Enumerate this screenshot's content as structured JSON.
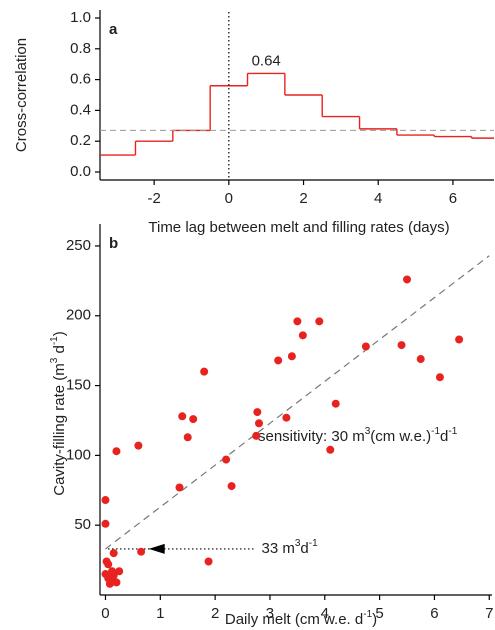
{
  "chart_data": [
    {
      "type": "step",
      "panel_label": "a",
      "ylabel": "Cross-correlation",
      "xlabel": "Time lag  between melt and filling rates (days)",
      "x": [
        -3,
        -2,
        -1,
        0,
        1,
        2,
        3,
        4,
        5,
        6,
        7
      ],
      "values": [
        0.11,
        0.2,
        0.27,
        0.56,
        0.64,
        0.5,
        0.36,
        0.28,
        0.24,
        0.23,
        0.22
      ],
      "value_labels": [
        null,
        null,
        null,
        null,
        "0.64",
        null,
        null,
        null,
        null,
        null,
        null
      ],
      "color": "#e8231f",
      "xlim": [
        -3.45,
        7.1
      ],
      "ylim": [
        0,
        1
      ],
      "xticks": [
        -2,
        0,
        2,
        4,
        6
      ],
      "yticks": [
        {
          "value": 0,
          "label": "0.0"
        },
        0.2,
        0.4,
        0.6,
        0.8,
        {
          "value": 1,
          "label": "1.0"
        }
      ],
      "reference_line": 0.27,
      "vline": 0
    },
    {
      "type": "scatter",
      "panel_label": "b",
      "ylabel": [
        "Cavity-filling rate (m",
        "3",
        " d",
        "-1",
        ")"
      ],
      "xlabel": [
        "Daily melt (cm w.e. d",
        "-1",
        ")"
      ],
      "x": [
        0.0,
        0.0,
        0.02,
        0.05,
        0.0,
        0.05,
        0.1,
        0.12,
        0.15,
        0.08,
        0.2,
        0.25,
        0.15,
        0.2,
        0.6,
        0.65,
        1.35,
        1.4,
        1.5,
        1.6,
        1.8,
        1.88,
        2.2,
        2.3,
        2.75,
        2.77,
        2.8,
        3.15,
        3.3,
        3.4,
        3.5,
        3.6,
        3.9,
        4.1,
        4.2,
        4.75,
        5.4,
        5.5,
        5.75,
        6.1,
        6.45
      ],
      "values": [
        68,
        51,
        24,
        22,
        15,
        12,
        10,
        17,
        14,
        8,
        9,
        17,
        30,
        103,
        107,
        31,
        77,
        128,
        113,
        126,
        160,
        24,
        97,
        78,
        114,
        131,
        123,
        168,
        127,
        171,
        196,
        186,
        196,
        104,
        137,
        178,
        179,
        226,
        169,
        156,
        183
      ],
      "color": "#e8231f",
      "xlim": [
        -0.1,
        7.05
      ],
      "ylim": [
        0,
        260
      ],
      "xticks": [
        0,
        1,
        2,
        3,
        4,
        5,
        6,
        7
      ],
      "yticks": [
        50,
        100,
        150,
        200,
        250
      ],
      "fit_line": {
        "x": [
          0,
          7
        ],
        "y": [
          33,
          243
        ]
      },
      "arrow": {
        "x": [
          2.7,
          0
        ],
        "y": 33
      },
      "arrow_label": [
        "33 m",
        "3",
        "d",
        "-1"
      ],
      "sensitivity_label": [
        "sensitivity: 30 m",
        "3",
        "(cm w.e.)",
        "-1",
        "d",
        "-1"
      ]
    }
  ]
}
